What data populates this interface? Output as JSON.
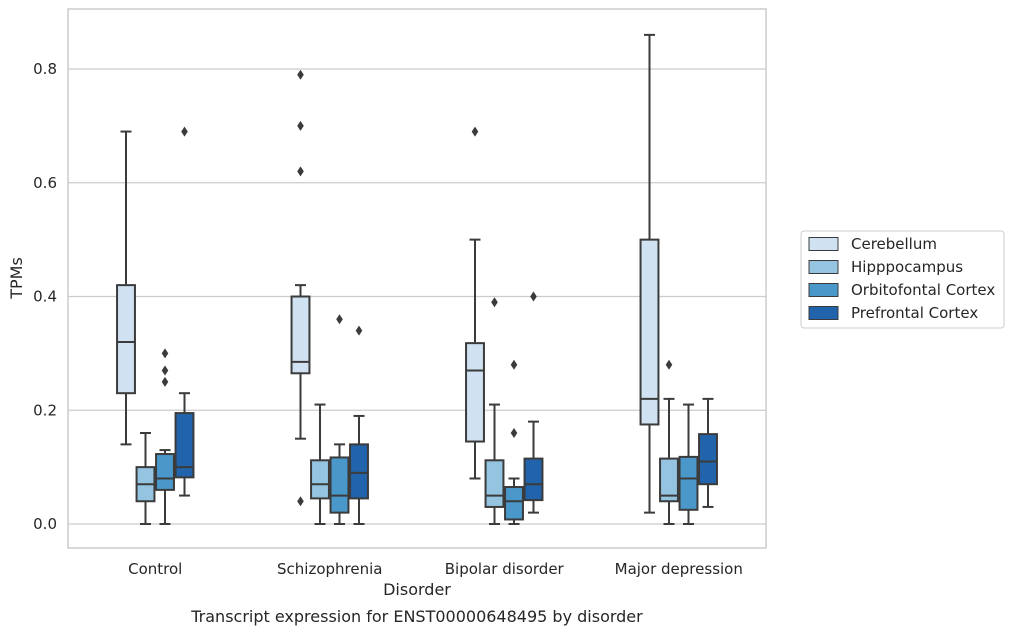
{
  "chart_data": {
    "type": "box",
    "caption": "Transcript expression for ENST00000648495 by disorder",
    "xlabel": "Disorder",
    "ylabel": "TPMs",
    "ylim": [
      -0.04,
      0.9
    ],
    "yticks": [
      0.0,
      0.2,
      0.4,
      0.6,
      0.8
    ],
    "yticklabels": [
      "0.0",
      "0.2",
      "0.4",
      "0.6",
      "0.8"
    ],
    "grid": true,
    "legend_position": "right",
    "categories": [
      "Control",
      "Schizophrenia",
      "Bipolar disorder",
      "Major depression"
    ],
    "series": [
      {
        "name": "Cerebellum",
        "color": "#d0e1f2",
        "boxes": [
          {
            "whislo": 0.14,
            "q1": 0.23,
            "med": 0.32,
            "q3": 0.42,
            "whishi": 0.69,
            "fliers": []
          },
          {
            "whislo": 0.15,
            "q1": 0.265,
            "med": 0.285,
            "q3": 0.4,
            "whishi": 0.42,
            "fliers": [
              0.04,
              0.62,
              0.7,
              0.79
            ]
          },
          {
            "whislo": 0.08,
            "q1": 0.145,
            "med": 0.27,
            "q3": 0.318,
            "whishi": 0.5,
            "fliers": [
              0.69
            ]
          },
          {
            "whislo": 0.02,
            "q1": 0.175,
            "med": 0.22,
            "q3": 0.5,
            "whishi": 0.86,
            "fliers": []
          }
        ]
      },
      {
        "name": "Hipppocampus",
        "color": "#94c4df",
        "boxes": [
          {
            "whislo": 0.0,
            "q1": 0.04,
            "med": 0.07,
            "q3": 0.1,
            "whishi": 0.16,
            "fliers": []
          },
          {
            "whislo": 0.0,
            "q1": 0.045,
            "med": 0.07,
            "q3": 0.112,
            "whishi": 0.21,
            "fliers": []
          },
          {
            "whislo": 0.0,
            "q1": 0.03,
            "med": 0.05,
            "q3": 0.112,
            "whishi": 0.21,
            "fliers": [
              0.39
            ]
          },
          {
            "whislo": 0.0,
            "q1": 0.04,
            "med": 0.05,
            "q3": 0.115,
            "whishi": 0.22,
            "fliers": [
              0.28
            ]
          }
        ]
      },
      {
        "name": "Orbitofontal Cortex",
        "color": "#4a98c9",
        "boxes": [
          {
            "whislo": 0.0,
            "q1": 0.06,
            "med": 0.08,
            "q3": 0.123,
            "whishi": 0.13,
            "fliers": [
              0.25,
              0.27,
              0.3
            ]
          },
          {
            "whislo": 0.0,
            "q1": 0.02,
            "med": 0.05,
            "q3": 0.117,
            "whishi": 0.14,
            "fliers": [
              0.36
            ]
          },
          {
            "whislo": 0.0,
            "q1": 0.008,
            "med": 0.04,
            "q3": 0.065,
            "whishi": 0.08,
            "fliers": [
              0.16,
              0.28
            ]
          },
          {
            "whislo": 0.0,
            "q1": 0.025,
            "med": 0.08,
            "q3": 0.118,
            "whishi": 0.21,
            "fliers": []
          }
        ]
      },
      {
        "name": "Prefrontal Cortex",
        "color": "#2164ab",
        "boxes": [
          {
            "whislo": 0.05,
            "q1": 0.082,
            "med": 0.1,
            "q3": 0.195,
            "whishi": 0.23,
            "fliers": [
              0.69
            ]
          },
          {
            "whislo": 0.0,
            "q1": 0.045,
            "med": 0.09,
            "q3": 0.14,
            "whishi": 0.19,
            "fliers": [
              0.34
            ]
          },
          {
            "whislo": 0.02,
            "q1": 0.042,
            "med": 0.07,
            "q3": 0.115,
            "whishi": 0.18,
            "fliers": [
              0.4
            ]
          },
          {
            "whislo": 0.03,
            "q1": 0.07,
            "med": 0.11,
            "q3": 0.158,
            "whishi": 0.22,
            "fliers": []
          }
        ]
      }
    ]
  }
}
